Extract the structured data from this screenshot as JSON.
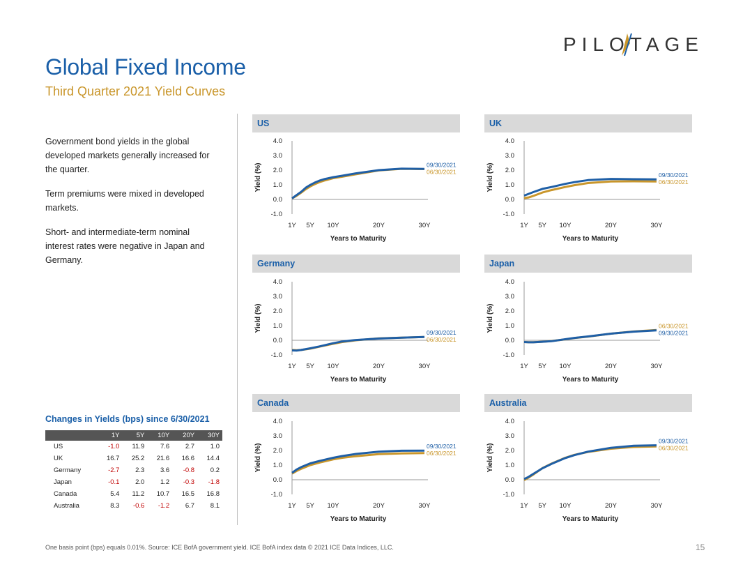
{
  "logo": {
    "text": "PILOTAGE"
  },
  "header": {
    "title": "Global Fixed Income",
    "subtitle": "Third Quarter 2021 Yield Curves"
  },
  "body_text": [
    "Government  bond yields in the global developed  markets generally increased for the quarter.",
    "Term premiums were mixed in developed  markets.",
    "Short- and intermediate-term  nominal interest rates were  negative  in Japan and Germany."
  ],
  "changes": {
    "title": "Changes in Yields (bps) since 6/30/2021",
    "columns": [
      "",
      "1Y",
      "5Y",
      "10Y",
      "20Y",
      "30Y"
    ],
    "rows": [
      {
        "country": "US",
        "values": [
          -1.0,
          11.9,
          7.6,
          2.7,
          1.0
        ],
        "display": [
          "-1.0",
          "11.9",
          "7.6",
          "2.7",
          "1.0"
        ]
      },
      {
        "country": "UK",
        "values": [
          16.7,
          25.2,
          21.6,
          16.6,
          14.4
        ],
        "display": [
          "16.7",
          "25.2",
          "21.6",
          "16.6",
          "14.4"
        ]
      },
      {
        "country": "Germany",
        "values": [
          -2.7,
          2.3,
          3.6,
          -0.8,
          0.2
        ],
        "display": [
          "-2.7",
          "2.3",
          "3.6",
          "-0.8",
          "0.2"
        ]
      },
      {
        "country": "Japan",
        "values": [
          -0.1,
          2.0,
          1.2,
          -0.3,
          -1.8
        ],
        "display": [
          "-0.1",
          "2.0",
          "1.2",
          "-0.3",
          "-1.8"
        ]
      },
      {
        "country": "Canada",
        "values": [
          5.4,
          11.2,
          10.7,
          16.5,
          16.8
        ],
        "display": [
          "5.4",
          "11.2",
          "10.7",
          "16.5",
          "16.8"
        ]
      },
      {
        "country": "Australia",
        "values": [
          8.3,
          -0.6,
          -1.2,
          6.7,
          8.1
        ],
        "display": [
          "8.3",
          "-0.6",
          "-1.2",
          "6.7",
          "8.1"
        ]
      }
    ]
  },
  "footnote": "One basis point (bps) equals 0.01%. Source: ICE BofA government yield. ICE BofA index data © 2021 ICE Data Indices, LLC.",
  "page_number": "15",
  "colors": {
    "current": "#1f5fa6",
    "prior": "#c9962b",
    "title": "#1a5fa8",
    "negative": "#c00000"
  },
  "chart_data": [
    {
      "type": "line",
      "title": "US",
      "xlabel": "Years to Maturity",
      "ylabel": "Yield (%)",
      "x_ticks": [
        1,
        5,
        10,
        20,
        30
      ],
      "x_tick_labels": [
        "1Y",
        "5Y",
        "10Y",
        "20Y",
        "30Y"
      ],
      "y_ticks": [
        -1,
        0,
        1,
        2,
        3,
        4
      ],
      "y_tick_labels": [
        "-1.0",
        "0.0",
        "1.0",
        "2.0",
        "3.0",
        "4.0"
      ],
      "ylim": [
        -1,
        4
      ],
      "xlim": [
        1,
        30
      ],
      "x": [
        1,
        2,
        3,
        4,
        5,
        6,
        7,
        8,
        10,
        12,
        15,
        20,
        25,
        30
      ],
      "series": [
        {
          "name": "09/30/2021",
          "values": [
            0.07,
            0.3,
            0.52,
            0.8,
            0.99,
            1.15,
            1.28,
            1.38,
            1.52,
            1.62,
            1.78,
            2.0,
            2.1,
            2.08
          ]
        },
        {
          "name": "06/30/2021",
          "values": [
            0.07,
            0.25,
            0.46,
            0.7,
            0.89,
            1.05,
            1.18,
            1.28,
            1.45,
            1.55,
            1.72,
            1.98,
            2.09,
            2.07
          ]
        }
      ]
    },
    {
      "type": "line",
      "title": "UK",
      "xlabel": "Years to Maturity",
      "ylabel": "Yield (%)",
      "x_ticks": [
        1,
        5,
        10,
        20,
        30
      ],
      "x_tick_labels": [
        "1Y",
        "5Y",
        "10Y",
        "20Y",
        "30Y"
      ],
      "y_ticks": [
        -1,
        0,
        1,
        2,
        3,
        4
      ],
      "y_tick_labels": [
        "-1.0",
        "0.0",
        "1.0",
        "2.0",
        "3.0",
        "4.0"
      ],
      "ylim": [
        -1,
        4
      ],
      "xlim": [
        1,
        30
      ],
      "x": [
        1,
        2,
        3,
        5,
        7,
        10,
        12,
        15,
        20,
        25,
        30
      ],
      "series": [
        {
          "name": "09/30/2021",
          "values": [
            0.26,
            0.38,
            0.5,
            0.72,
            0.85,
            1.06,
            1.18,
            1.32,
            1.4,
            1.38,
            1.37
          ]
        },
        {
          "name": "06/30/2021",
          "values": [
            0.09,
            0.14,
            0.24,
            0.47,
            0.64,
            0.85,
            0.97,
            1.12,
            1.23,
            1.24,
            1.23
          ]
        }
      ]
    },
    {
      "type": "line",
      "title": "Germany",
      "xlabel": "Years to Maturity",
      "ylabel": "Yield (%)",
      "x_ticks": [
        1,
        5,
        10,
        20,
        30
      ],
      "x_tick_labels": [
        "1Y",
        "5Y",
        "10Y",
        "20Y",
        "30Y"
      ],
      "y_ticks": [
        -1,
        0,
        1,
        2,
        3,
        4
      ],
      "y_tick_labels": [
        "-1.0",
        "0.0",
        "1.0",
        "2.0",
        "3.0",
        "4.0"
      ],
      "ylim": [
        -1,
        4
      ],
      "xlim": [
        1,
        30
      ],
      "x": [
        1,
        2,
        3,
        5,
        7,
        10,
        12,
        15,
        20,
        25,
        30
      ],
      "series": [
        {
          "name": "09/30/2021",
          "values": [
            -0.69,
            -0.7,
            -0.66,
            -0.55,
            -0.42,
            -0.2,
            -0.08,
            0.02,
            0.12,
            0.18,
            0.23
          ]
        },
        {
          "name": "06/30/2021",
          "values": [
            -0.66,
            -0.68,
            -0.66,
            -0.57,
            -0.44,
            -0.24,
            -0.12,
            0.0,
            0.13,
            0.18,
            0.23
          ]
        }
      ]
    },
    {
      "type": "line",
      "title": "Japan",
      "xlabel": "Years to Maturity",
      "ylabel": "Yield (%)",
      "x_ticks": [
        1,
        5,
        10,
        20,
        30
      ],
      "x_tick_labels": [
        "1Y",
        "5Y",
        "10Y",
        "20Y",
        "30Y"
      ],
      "y_ticks": [
        -1,
        0,
        1,
        2,
        3,
        4
      ],
      "y_tick_labels": [
        "-1.0",
        "0.0",
        "1.0",
        "2.0",
        "3.0",
        "4.0"
      ],
      "ylim": [
        -1,
        4
      ],
      "xlim": [
        1,
        30
      ],
      "x": [
        1,
        2,
        3,
        5,
        7,
        10,
        12,
        15,
        20,
        25,
        30
      ],
      "series": [
        {
          "name": "06/30/2021",
          "values": [
            -0.12,
            -0.13,
            -0.13,
            -0.1,
            -0.05,
            0.06,
            0.15,
            0.25,
            0.45,
            0.6,
            0.7
          ]
        },
        {
          "name": "09/30/2021",
          "values": [
            -0.12,
            -0.14,
            -0.14,
            -0.1,
            -0.06,
            0.07,
            0.16,
            0.26,
            0.45,
            0.59,
            0.68
          ]
        }
      ]
    },
    {
      "type": "line",
      "title": "Canada",
      "xlabel": "Years to Maturity",
      "ylabel": "Yield (%)",
      "x_ticks": [
        1,
        5,
        10,
        20,
        30
      ],
      "x_tick_labels": [
        "1Y",
        "5Y",
        "10Y",
        "20Y",
        "30Y"
      ],
      "y_ticks": [
        -1,
        0,
        1,
        2,
        3,
        4
      ],
      "y_tick_labels": [
        "-1.0",
        "0.0",
        "1.0",
        "2.0",
        "3.0",
        "4.0"
      ],
      "ylim": [
        -1,
        4
      ],
      "xlim": [
        1,
        30
      ],
      "x": [
        1,
        2,
        3,
        5,
        7,
        10,
        12,
        15,
        20,
        25,
        30
      ],
      "series": [
        {
          "name": "09/30/2021",
          "values": [
            0.47,
            0.7,
            0.86,
            1.12,
            1.28,
            1.5,
            1.62,
            1.76,
            1.92,
            1.98,
            1.99
          ]
        },
        {
          "name": "06/30/2021",
          "values": [
            0.42,
            0.6,
            0.75,
            1.0,
            1.17,
            1.39,
            1.5,
            1.61,
            1.75,
            1.8,
            1.82
          ]
        }
      ]
    },
    {
      "type": "line",
      "title": "Australia",
      "xlabel": "Years to Maturity",
      "ylabel": "Yield (%)",
      "x_ticks": [
        1,
        5,
        10,
        20,
        30
      ],
      "x_tick_labels": [
        "1Y",
        "5Y",
        "10Y",
        "20Y",
        "30Y"
      ],
      "y_ticks": [
        -1,
        0,
        1,
        2,
        3,
        4
      ],
      "y_tick_labels": [
        "-1.0",
        "0.0",
        "1.0",
        "2.0",
        "3.0",
        "4.0"
      ],
      "ylim": [
        -1,
        4
      ],
      "xlim": [
        1,
        30
      ],
      "x": [
        1,
        2,
        3,
        5,
        7,
        10,
        12,
        15,
        20,
        25,
        30
      ],
      "series": [
        {
          "name": "09/30/2021",
          "values": [
            0.05,
            0.2,
            0.4,
            0.78,
            1.08,
            1.48,
            1.68,
            1.92,
            2.18,
            2.32,
            2.35
          ]
        },
        {
          "name": "06/30/2021",
          "values": [
            -0.03,
            0.15,
            0.35,
            0.79,
            1.1,
            1.5,
            1.7,
            1.9,
            2.12,
            2.24,
            2.27
          ]
        }
      ]
    }
  ]
}
